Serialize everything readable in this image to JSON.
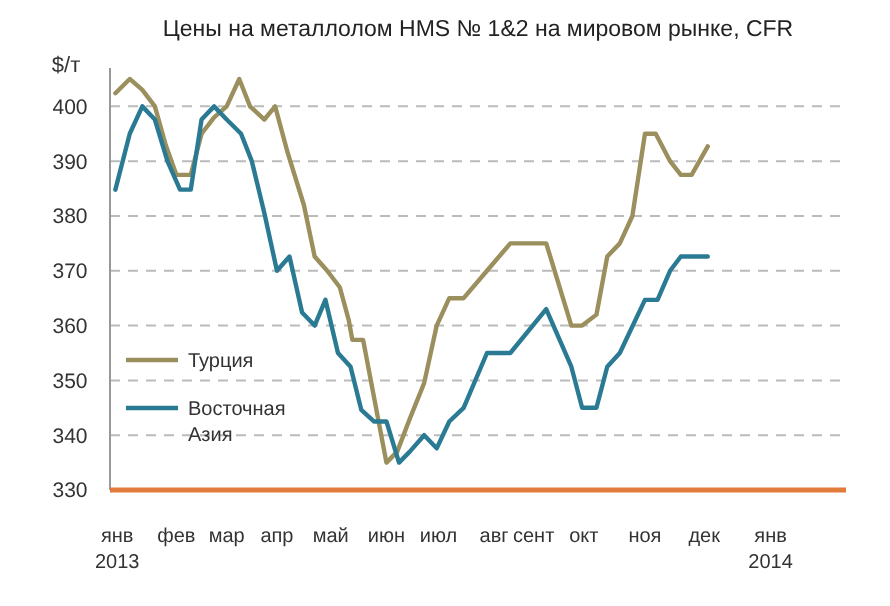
{
  "chart_data": {
    "type": "line",
    "title": "Цены на металлолом HMS № 1&2 на мировом рынке, CFR",
    "ylabel": "$/т",
    "xlim": [
      "2012-12-29",
      "2014-02-12"
    ],
    "ylim": [
      330,
      407
    ],
    "xticks": [
      {
        "value": "2013-01-02",
        "label": "янв\n2013"
      },
      {
        "value": "2013-02-04",
        "label": "фев"
      },
      {
        "value": "2013-03-04",
        "label": "мар"
      },
      {
        "value": "2013-04-01",
        "label": "апр"
      },
      {
        "value": "2013-05-01",
        "label": "май"
      },
      {
        "value": "2013-06-01",
        "label": "июн"
      },
      {
        "value": "2013-06-30",
        "label": "июл"
      },
      {
        "value": "2013-07-31",
        "label": "авг"
      },
      {
        "value": "2013-08-22",
        "label": "сент"
      },
      {
        "value": "2013-09-19",
        "label": "окт"
      },
      {
        "value": "2013-10-23",
        "label": "ноя"
      },
      {
        "value": "2013-11-25",
        "label": "дек"
      },
      {
        "value": "2014-01-01",
        "label": "янв\n2014"
      }
    ],
    "yticks": [
      330,
      340,
      350,
      360,
      370,
      380,
      390,
      400
    ],
    "grid": "y",
    "legend": "bottom left",
    "line_style": "solid",
    "series": [
      {
        "name": "Турция",
        "color": "#9b8f5e",
        "x": [
          "2013-01-01",
          "2013-01-09",
          "2013-01-16",
          "2013-01-23",
          "2013-01-29",
          "2013-02-04",
          "2013-02-12",
          "2013-02-18",
          "2013-02-25",
          "2013-03-04",
          "2013-03-11",
          "2013-03-17",
          "2013-03-25",
          "2013-03-31",
          "2013-04-07",
          "2013-04-16",
          "2013-04-22",
          "2013-04-29",
          "2013-05-06",
          "2013-05-11",
          "2013-05-13",
          "2013-05-19",
          "2013-06-01",
          "2013-06-07",
          "2013-06-14",
          "2013-06-22",
          "2013-06-29",
          "2013-07-06",
          "2013-07-14",
          "2013-07-27",
          "2013-08-09",
          "2013-08-29",
          "2013-09-12",
          "2013-09-18",
          "2013-09-26",
          "2013-10-02",
          "2013-10-09",
          "2013-10-16",
          "2013-10-23",
          "2013-10-29",
          "2013-11-06",
          "2013-11-12",
          "2013-11-18",
          "2013-11-27"
        ],
        "values": [
          402.4,
          405,
          403,
          400,
          393,
          387.5,
          387.5,
          395,
          398,
          400,
          405,
          400,
          397.6,
          400,
          391.5,
          382,
          372.6,
          370,
          367,
          361,
          357.4,
          357.4,
          335,
          337,
          343,
          349.5,
          360,
          365,
          365,
          370,
          375,
          375,
          360,
          360,
          362,
          372.6,
          375,
          380,
          395,
          395,
          390,
          387.5,
          387.5,
          392.7
        ]
      },
      {
        "name": "Восточная\nАзия",
        "color": "#2b7a94",
        "x": [
          "2013-01-01",
          "2013-01-09",
          "2013-01-16",
          "2013-01-23",
          "2013-01-30",
          "2013-02-06",
          "2013-02-12",
          "2013-02-18",
          "2013-02-25",
          "2013-03-04",
          "2013-03-12",
          "2013-03-18",
          "2013-03-25",
          "2013-04-01",
          "2013-04-08",
          "2013-04-15",
          "2013-04-22",
          "2013-04-28",
          "2013-05-05",
          "2013-05-12",
          "2013-05-18",
          "2013-05-25",
          "2013-06-01",
          "2013-06-08",
          "2013-06-14",
          "2013-06-22",
          "2013-06-29",
          "2013-07-06",
          "2013-07-14",
          "2013-07-27",
          "2013-08-09",
          "2013-08-29",
          "2013-09-12",
          "2013-09-18",
          "2013-09-26",
          "2013-10-02",
          "2013-10-09",
          "2013-10-23",
          "2013-10-30",
          "2013-11-06",
          "2013-11-12",
          "2013-11-27"
        ],
        "values": [
          384.8,
          395,
          400,
          397.6,
          390,
          384.8,
          384.8,
          397.6,
          400,
          397.6,
          395,
          390,
          380.5,
          370,
          372.6,
          362.4,
          360,
          364.7,
          355,
          352.5,
          344.6,
          342.5,
          342.5,
          335,
          337,
          340,
          337.6,
          342.5,
          345,
          355,
          355,
          363,
          352.5,
          345,
          345,
          352.5,
          355,
          364.7,
          364.7,
          370,
          372.6,
          372.6
        ]
      }
    ]
  }
}
